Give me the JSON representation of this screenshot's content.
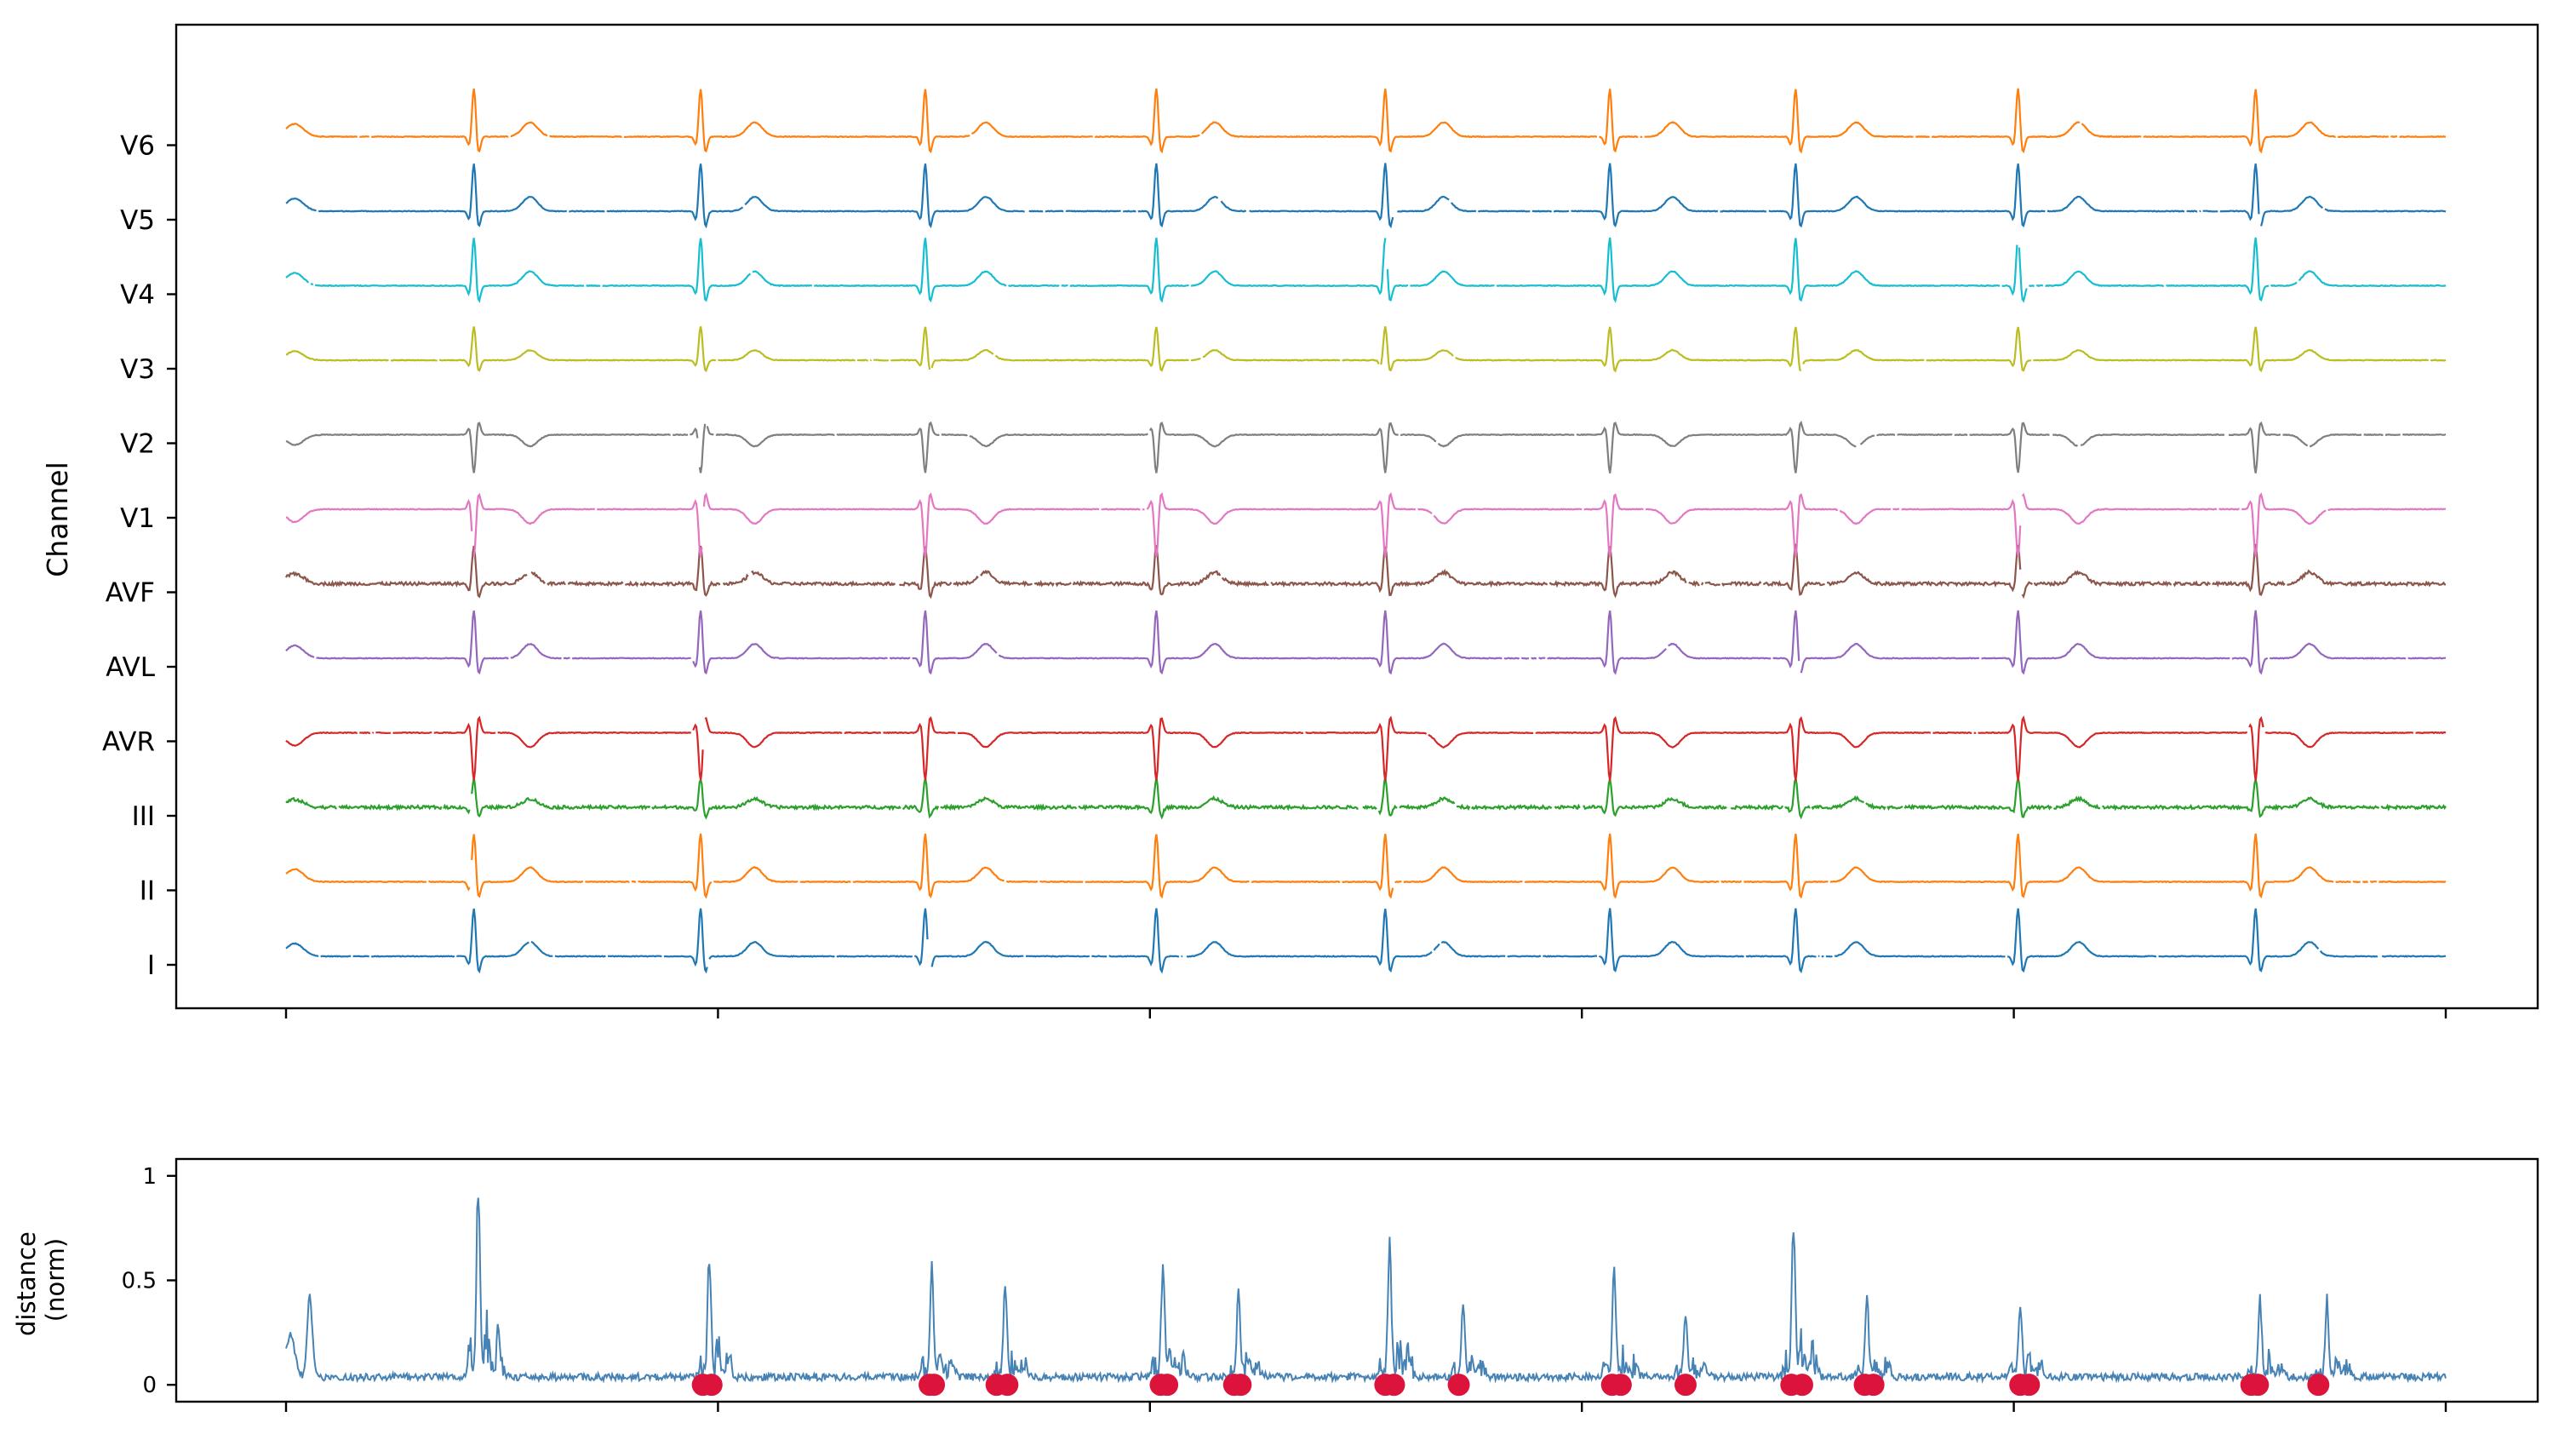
{
  "chart_data": [
    {
      "type": "line",
      "ylabel": "Channel",
      "channels": [
        "I",
        "II",
        "III",
        "AVR",
        "AVL",
        "AVF",
        "V1",
        "V2",
        "V3",
        "V4",
        "V5",
        "V6"
      ],
      "colors": [
        "#1f77b4",
        "#ff7f0e",
        "#2ca02c",
        "#d62728",
        "#9467bd",
        "#8c564b",
        "#e377c2",
        "#7f7f7f",
        "#bcbd22",
        "#17becf",
        "#1f77b4",
        "#ff7f0e"
      ],
      "channel_offsets": [
        0,
        1,
        2,
        3,
        4,
        5,
        6,
        7,
        8,
        9,
        10,
        11
      ],
      "x_range": [
        0,
        1000
      ],
      "x_ticks": [
        0,
        200,
        400,
        600,
        800,
        1000
      ],
      "x_tick_labels": [
        "",
        "",
        "",
        "",
        "",
        ""
      ],
      "beat_positions": [
        87,
        192,
        296,
        403,
        509,
        613,
        699,
        802,
        912
      ],
      "t_wave_positions": [
        113,
        217,
        324,
        430,
        536,
        642,
        727,
        830,
        937
      ],
      "grid": false
    },
    {
      "type": "line",
      "ylabel": "distance\n(norm)",
      "ylabel_lines": [
        "distance",
        "(norm)"
      ],
      "ylim": [
        -0.04,
        1.04
      ],
      "y_ticks": [
        0,
        0.5,
        1
      ],
      "y_tick_labels": [
        "0",
        "0.5",
        "1"
      ],
      "x_range": [
        0,
        1000
      ],
      "x_ticks": [
        0,
        200,
        400,
        600,
        800,
        1000
      ],
      "line_color": "#4682b4",
      "peaks": [
        {
          "x": 89,
          "y": 1.0
        },
        {
          "x": 196,
          "y": 0.63
        },
        {
          "x": 299,
          "y": 0.56
        },
        {
          "x": 333,
          "y": 0.46
        },
        {
          "x": 406,
          "y": 0.57
        },
        {
          "x": 441,
          "y": 0.41
        },
        {
          "x": 511,
          "y": 0.71
        },
        {
          "x": 545,
          "y": 0.39
        },
        {
          "x": 615,
          "y": 0.53
        },
        {
          "x": 648,
          "y": 0.32
        },
        {
          "x": 698,
          "y": 0.77
        },
        {
          "x": 732,
          "y": 0.4
        },
        {
          "x": 803,
          "y": 0.39
        },
        {
          "x": 914,
          "y": 0.4
        },
        {
          "x": 945,
          "y": 0.37
        }
      ],
      "anomaly_markers": {
        "color": "#dc143c",
        "y": 0,
        "x": [
          193,
          197,
          298,
          300,
          329,
          334,
          405,
          408,
          439,
          442,
          509,
          513,
          543,
          614,
          618,
          648,
          697,
          702,
          731,
          735,
          803,
          807,
          910,
          913,
          941
        ]
      }
    }
  ]
}
